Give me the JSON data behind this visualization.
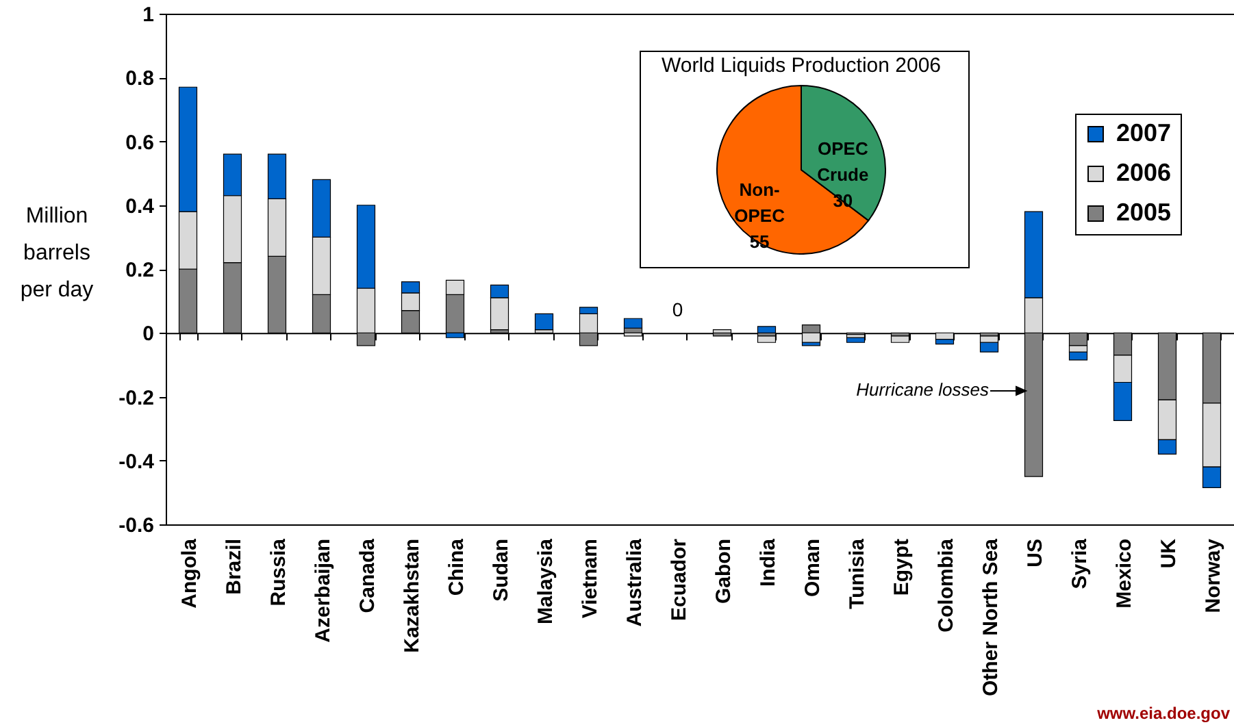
{
  "chart_data": [
    {
      "type": "bar",
      "ylabel": "Million barrels per day",
      "categories": [
        "Angola",
        "Brazil",
        "Russia",
        "Azerbaijan",
        "Canada",
        "Kazakhstan",
        "China",
        "Sudan",
        "Malaysia",
        "Vietnam",
        "Australia",
        "Ecuador",
        "Gabon",
        "India",
        "Oman",
        "Tunisia",
        "Egypt",
        "Colombia",
        "Other North Sea",
        "US",
        "Syria",
        "Mexico",
        "UK",
        "Norway"
      ],
      "series": [
        {
          "name": "2005",
          "color": "#808080",
          "values": [
            0.2,
            0.22,
            0.24,
            0.12,
            -0.04,
            0.07,
            0.12,
            0.01,
            0,
            -0.04,
            0.015,
            0,
            -0.01,
            -0.01,
            0.025,
            -0.005,
            -0.01,
            0,
            -0.01,
            -0.45,
            -0.04,
            -0.07,
            -0.21,
            -0.22
          ]
        },
        {
          "name": "2006",
          "color": "#d9d9d9",
          "values": [
            0.18,
            0.21,
            0.18,
            0.18,
            0.14,
            0.055,
            0.045,
            0.1,
            0.01,
            0.06,
            -0.01,
            0,
            0.01,
            -0.02,
            -0.03,
            -0.01,
            -0.02,
            -0.02,
            -0.02,
            0.11,
            -0.02,
            -0.085,
            -0.125,
            -0.2
          ]
        },
        {
          "name": "2007",
          "color": "#0066cc",
          "values": [
            0.39,
            0.13,
            0.14,
            0.18,
            0.26,
            0.035,
            -0.015,
            0.04,
            0.05,
            0.02,
            0.03,
            0,
            0,
            0.02,
            -0.01,
            -0.015,
            0,
            -0.015,
            -0.03,
            0.27,
            -0.025,
            -0.12,
            -0.045,
            -0.065
          ]
        }
      ],
      "stacked": true,
      "ylim": [
        -0.6,
        1
      ],
      "yticks": [
        -0.6,
        -0.4,
        -0.2,
        0,
        0.2,
        0.4,
        0.6,
        0.8,
        1
      ],
      "legend": "top right",
      "annotations": [
        {
          "text": "0",
          "x": "Ecuador",
          "y": 0
        },
        "Hurricane losses",
        "www.eia.doe.gov"
      ]
    },
    {
      "type": "pie",
      "title": "World Liquids Production 2006",
      "categories": [
        "Non-OPEC",
        "OPEC Crude"
      ],
      "values": [
        55,
        30
      ],
      "colors": [
        "#ff6600",
        "#339966"
      ],
      "data_labels": true
    }
  ]
}
